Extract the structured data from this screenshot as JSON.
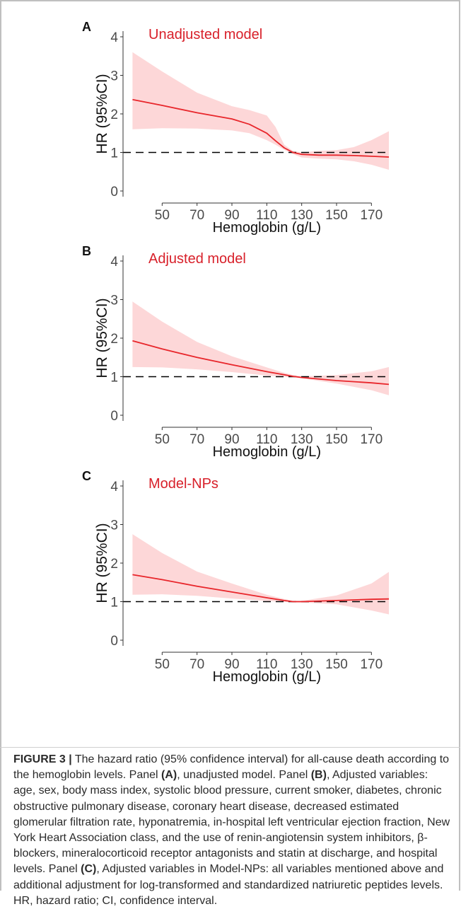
{
  "chart_data": [
    {
      "panel": "A",
      "type": "line",
      "title": "Unadjusted model",
      "xlabel": "Hemoglobin (g/L)",
      "ylabel": "HR (95%CI)",
      "xlim": [
        30,
        180
      ],
      "ylim": [
        0,
        4
      ],
      "xticks": [
        "50",
        "70",
        "90",
        "110",
        "130",
        "150",
        "170"
      ],
      "yticks": [
        "0",
        "1",
        "2",
        "3",
        "4"
      ],
      "reference_line": 1,
      "x": [
        33,
        50,
        70,
        90,
        100,
        110,
        115,
        120,
        125,
        130,
        140,
        150,
        160,
        170,
        180
      ],
      "series": [
        {
          "name": "HR",
          "values": [
            2.37,
            2.22,
            2.03,
            1.87,
            1.73,
            1.5,
            1.3,
            1.12,
            1.0,
            0.95,
            0.93,
            0.93,
            0.92,
            0.9,
            0.88
          ]
        },
        {
          "name": "Lower 95% CI",
          "values": [
            1.6,
            1.63,
            1.62,
            1.57,
            1.5,
            1.32,
            1.2,
            1.07,
            0.96,
            0.87,
            0.84,
            0.82,
            0.77,
            0.68,
            0.55
          ]
        },
        {
          "name": "Upper 95% CI",
          "values": [
            3.6,
            3.1,
            2.55,
            2.2,
            2.1,
            1.96,
            1.66,
            1.2,
            1.04,
            1.0,
            1.04,
            1.06,
            1.14,
            1.32,
            1.55
          ]
        }
      ],
      "colors": {
        "line": "#e8262b",
        "band": "#fdd7d8",
        "title": "#d8202a",
        "reference": "#000000"
      }
    },
    {
      "panel": "B",
      "type": "line",
      "title": "Adjusted model",
      "xlabel": "Hemoglobin (g/L)",
      "ylabel": "HR (95%CI)",
      "xlim": [
        30,
        180
      ],
      "ylim": [
        0,
        4
      ],
      "xticks": [
        "50",
        "70",
        "90",
        "110",
        "130",
        "150",
        "170"
      ],
      "yticks": [
        "0",
        "1",
        "2",
        "3",
        "4"
      ],
      "reference_line": 1,
      "x": [
        33,
        50,
        70,
        90,
        110,
        120,
        125,
        130,
        150,
        170,
        180
      ],
      "series": [
        {
          "name": "HR",
          "values": [
            1.93,
            1.72,
            1.5,
            1.31,
            1.13,
            1.05,
            1.01,
            0.98,
            0.9,
            0.84,
            0.8
          ],
          "lower": [
            1.25,
            1.24,
            1.19,
            1.12,
            1.03,
            1.0,
            0.99,
            0.96,
            0.82,
            0.65,
            0.52
          ],
          "upper": [
            2.95,
            2.43,
            1.9,
            1.53,
            1.24,
            1.1,
            1.04,
            1.01,
            1.04,
            1.14,
            1.25
          ]
        }
      ],
      "colors": {
        "line": "#e8262b",
        "band": "#fdd7d8",
        "title": "#d8202a",
        "reference": "#000000"
      }
    },
    {
      "panel": "C",
      "type": "line",
      "title": "Model-NPs",
      "xlabel": "Hemoglobin (g/L)",
      "ylabel": "HR (95%CI)",
      "xlim": [
        30,
        180
      ],
      "ylim": [
        0,
        4
      ],
      "xticks": [
        "50",
        "70",
        "90",
        "110",
        "130",
        "150",
        "170"
      ],
      "yticks": [
        "0",
        "1",
        "2",
        "3",
        "4"
      ],
      "reference_line": 1,
      "x": [
        33,
        50,
        70,
        90,
        110,
        120,
        125,
        130,
        150,
        170,
        180
      ],
      "series": [
        {
          "name": "HR",
          "values": [
            1.7,
            1.57,
            1.4,
            1.25,
            1.1,
            1.03,
            1.0,
            1.0,
            1.03,
            1.06,
            1.07
          ],
          "lower": [
            1.18,
            1.19,
            1.15,
            1.08,
            1.02,
            0.99,
            0.98,
            0.98,
            0.93,
            0.77,
            0.67
          ],
          "upper": [
            2.75,
            2.26,
            1.78,
            1.47,
            1.18,
            1.07,
            1.02,
            1.02,
            1.16,
            1.47,
            1.77
          ]
        }
      ],
      "colors": {
        "line": "#e8262b",
        "band": "#fdd7d8",
        "title": "#d8202a",
        "reference": "#000000"
      }
    }
  ],
  "caption": {
    "label": "FIGURE 3 |",
    "parts": [
      " The hazard ratio (95% confidence interval) for all-cause death according to the hemoglobin levels. Panel ",
      "(A)",
      ", unadjusted model. Panel ",
      "(B)",
      ", Adjusted variables: age, sex, body mass index, systolic blood pressure, current smoker, diabetes, chronic obstructive pulmonary disease, coronary heart disease, decreased estimated glomerular filtration rate, hyponatremia, in-hospital left ventricular ejection fraction, New York Heart Association class, and the use of renin-angiotensin system inhibitors, β-blockers, mineralocorticoid receptor antagonists and statin at discharge, and hospital levels. Panel ",
      "(C)",
      ", Adjusted variables in Model-NPs: all variables mentioned above and additional adjustment for log-transformed and standardized natriuretic peptides levels. HR, hazard ratio; CI, confidence interval."
    ]
  }
}
